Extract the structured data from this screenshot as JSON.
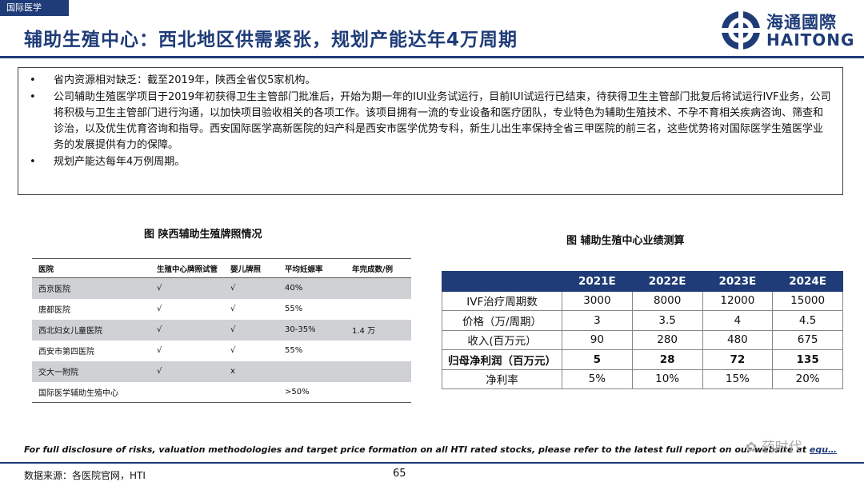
{
  "header": {
    "tag": "国际医学",
    "title": "辅助生殖中心：西北地区供需紧张，规划产能达年4万周期",
    "logo_cn": "海通國際",
    "logo_en": "HAITONG",
    "brand_color": "#1f3c78"
  },
  "bullets": [
    "省内资源相对缺乏：截至2019年，陕西全省仅5家机构。",
    "公司辅助生殖医学项目于2019年初获得卫生主管部门批准后，开始为期一年的IUI业务试运行，目前IUI试运行已结束，待获得卫生主管部门批复后将试运行IVF业务，公司将积极与卫生主管部门进行沟通，以加快项目验收相关的各项工作。该项目拥有一流的专业设备和医疗团队，专业特色为辅助生殖技术、不孕不育相关疾病咨询、筛查和诊治，以及优生优育咨询和指导。西安国际医学高新医院的妇产科是西安市医学优势专科，新生儿出生率保持全省三甲医院的前三名，这些优势将对国际医学生殖医学业务的发展提供有力的保障。",
    "规划产能达每年4万例周期。"
  ],
  "license_table": {
    "caption": "图  陕西辅助生殖牌照情况",
    "headers": [
      "医院",
      "生殖中心牌照试管",
      "婴儿牌照",
      "平均妊娠率",
      "年完成数/例"
    ],
    "rows": [
      [
        "西京医院",
        "√",
        "√",
        "40%",
        ""
      ],
      [
        "唐都医院",
        "√",
        "√",
        "55%",
        ""
      ],
      [
        "西北妇女儿童医院",
        "√",
        "√",
        "30-35%",
        "1.4 万"
      ],
      [
        "西安市第四医院",
        "√",
        "√",
        "55%",
        ""
      ],
      [
        "交大一附院",
        "√",
        "x",
        "",
        ""
      ],
      [
        "国际医学辅助生殖中心",
        "",
        "",
        ">50%",
        ""
      ]
    ]
  },
  "performance_table": {
    "caption": "图  辅助生殖中心业绩测算",
    "years": [
      "2021E",
      "2022E",
      "2023E",
      "2024E"
    ],
    "rows": [
      {
        "label": "IVF治疗周期数",
        "values": [
          "3000",
          "8000",
          "12000",
          "15000"
        ]
      },
      {
        "label": "价格（万/周期）",
        "values": [
          "3",
          "3.5",
          "4",
          "4.5"
        ]
      },
      {
        "label": "收入(百万元）",
        "values": [
          "90",
          "280",
          "480",
          "675"
        ]
      },
      {
        "label": "归母净利润（百万元）",
        "values": [
          "5",
          "28",
          "72",
          "135"
        ],
        "bold": true
      },
      {
        "label": "净利率",
        "values": [
          "5%",
          "10%",
          "15%",
          "20%"
        ]
      }
    ]
  },
  "footer": {
    "disclosure": "For full disclosure of risks, valuation methodologies and target price formation on all HTI rated stocks, please refer to the latest full report on our website at ",
    "link": "equ…",
    "source": "数据来源：各医院官网，HTI",
    "page": "65",
    "watermark": "药时代"
  }
}
